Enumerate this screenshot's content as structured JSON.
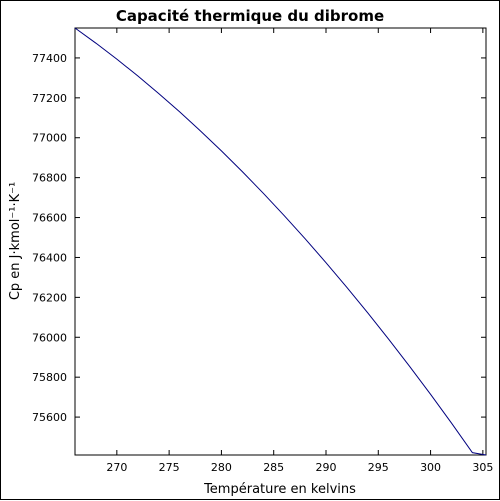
{
  "chart_data": {
    "type": "line",
    "title": "Capacité thermique du dibrome",
    "xlabel": "Température en kelvins",
    "ylabel": "Cp en J·kmol⁻¹·K⁻¹",
    "xlim": [
      266,
      305.3
    ],
    "ylim": [
      75410,
      77550
    ],
    "x_ticks": [
      270,
      275,
      280,
      285,
      290,
      295,
      300,
      305
    ],
    "y_ticks": [
      75600,
      75800,
      76000,
      76200,
      76400,
      76600,
      76800,
      77000,
      77200,
      77400
    ],
    "grid": false,
    "series": [
      {
        "color": "#00007f",
        "x": [
          266,
          268,
          270,
          272,
          274,
          276,
          278,
          280,
          282,
          284,
          286,
          288,
          290,
          292,
          294,
          296,
          298,
          300,
          302,
          304,
          305.3
        ],
        "y": [
          77550,
          77474,
          77394,
          77310,
          77222,
          77130,
          77034,
          76934,
          76830,
          76722,
          76610,
          76494,
          76374,
          76250,
          76122,
          75990,
          75854,
          75714,
          75570,
          75422,
          75324
        ]
      }
    ]
  }
}
